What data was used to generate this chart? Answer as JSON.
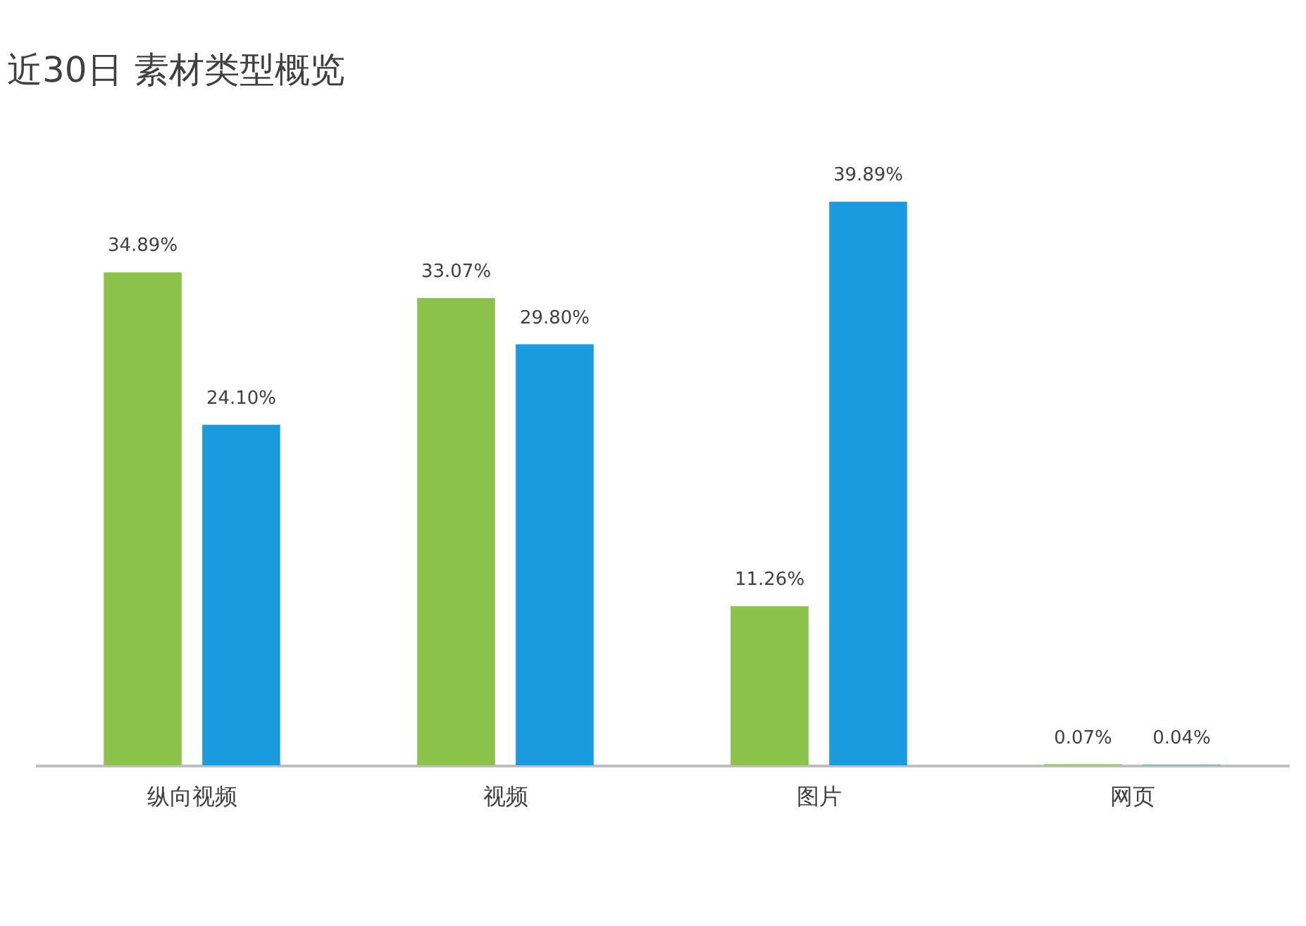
{
  "chart_data": {
    "type": "bar",
    "title": "近30日 素材类型概览",
    "categories": [
      "纵向视频",
      "视频",
      "图片",
      "网页"
    ],
    "series": [
      {
        "color": "#8bc34a",
        "values": [
          34.89,
          33.07,
          11.26,
          0.07
        ],
        "value_labels": [
          "34.89%",
          "33.07%",
          "11.26%",
          "0.07%"
        ]
      },
      {
        "color": "#1a9be0",
        "values": [
          24.1,
          29.8,
          39.89,
          0.04
        ],
        "value_labels": [
          "24.10%",
          "29.80%",
          "39.89%",
          "0.04%"
        ]
      }
    ],
    "tick_labels": "x"
  }
}
